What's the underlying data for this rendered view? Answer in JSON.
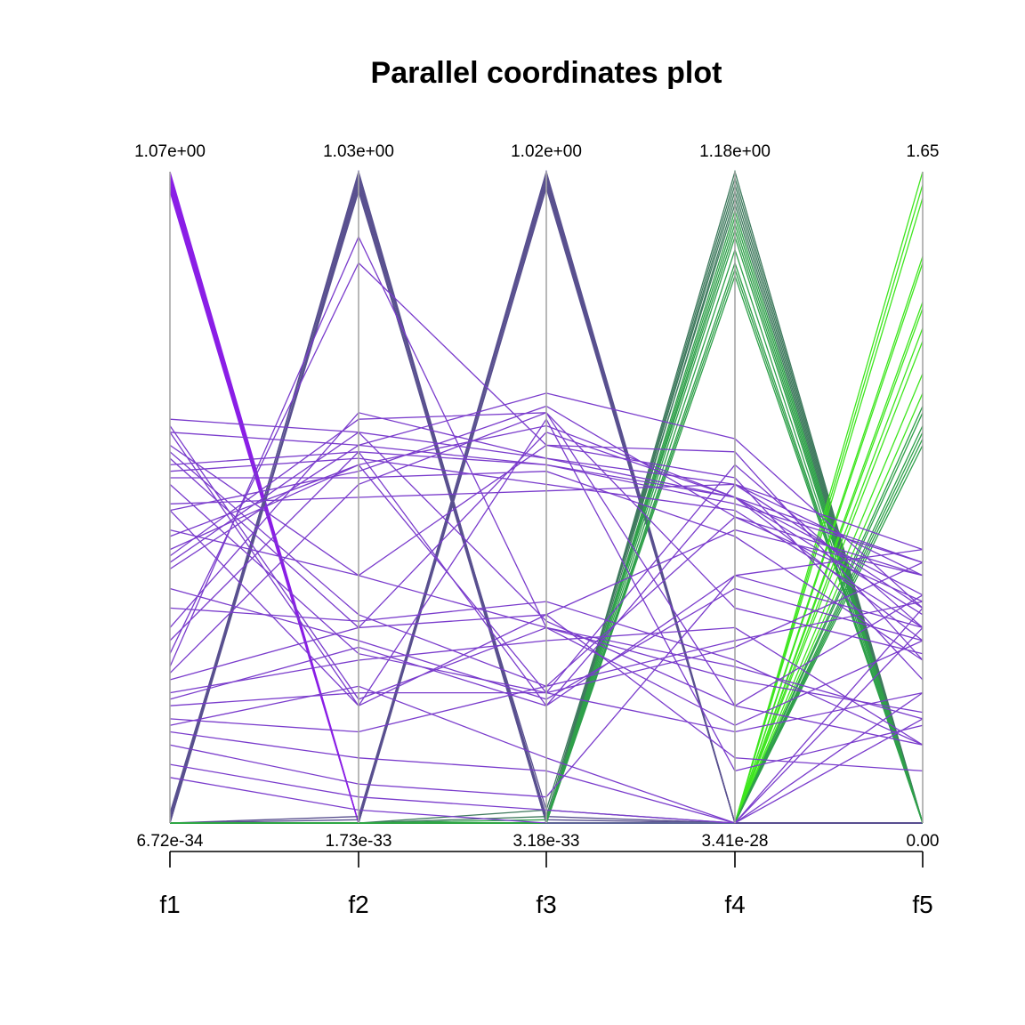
{
  "chart_data": {
    "type": "parallel-coordinates",
    "title": "Parallel coordinates plot",
    "axes": [
      {
        "name": "f1",
        "max_label": "1.07e+00",
        "min_label": "6.72e-34"
      },
      {
        "name": "f2",
        "max_label": "1.03e+00",
        "min_label": "1.73e-33"
      },
      {
        "name": "f3",
        "max_label": "1.02e+00",
        "min_label": "3.18e-33"
      },
      {
        "name": "f4",
        "max_label": "1.18e+00",
        "min_label": "3.41e-28"
      },
      {
        "name": "f5",
        "max_label": "1.65",
        "min_label": "0.00"
      }
    ],
    "colors": {
      "purple_bright": "#8a1ee6",
      "purple": "#7a3ccc",
      "slate": "#59508f",
      "teal_green": "#3f7a5e",
      "green": "#2fa04a",
      "lime": "#3ee61e",
      "axis": "#a6a6a6"
    },
    "series": [
      {
        "color": "purple_bright",
        "values": [
          1.0,
          0.0,
          0.0,
          0.0,
          0.0
        ]
      },
      {
        "color": "purple_bright",
        "values": [
          0.995,
          0.0,
          0.0,
          0.0,
          0.0
        ]
      },
      {
        "color": "purple_bright",
        "values": [
          0.99,
          0.0,
          0.0,
          0.0,
          0.0
        ]
      },
      {
        "color": "purple_bright",
        "values": [
          0.985,
          0.0,
          0.0,
          0.0,
          0.0
        ]
      },
      {
        "color": "purple_bright",
        "values": [
          0.98,
          0.0,
          0.0,
          0.0,
          0.0
        ]
      },
      {
        "color": "purple_bright",
        "values": [
          0.975,
          0.0,
          0.0,
          0.0,
          0.0
        ]
      },
      {
        "color": "purple_bright",
        "values": [
          0.97,
          0.0,
          0.0,
          0.0,
          0.0
        ]
      },
      {
        "color": "slate",
        "values": [
          0.0,
          1.0,
          0.0,
          0.0,
          0.0
        ]
      },
      {
        "color": "slate",
        "values": [
          0.005,
          0.995,
          0.005,
          0.0,
          0.0
        ]
      },
      {
        "color": "slate",
        "values": [
          0.01,
          0.99,
          0.0,
          0.0,
          0.0
        ]
      },
      {
        "color": "slate",
        "values": [
          0.0,
          0.985,
          0.01,
          0.0,
          0.0
        ]
      },
      {
        "color": "slate",
        "values": [
          0.003,
          0.98,
          0.0,
          0.0,
          0.0
        ]
      },
      {
        "color": "slate",
        "values": [
          0.0,
          0.975,
          0.0,
          0.0,
          0.0
        ]
      },
      {
        "color": "slate",
        "values": [
          0.015,
          0.97,
          0.02,
          0.0,
          0.0
        ]
      },
      {
        "color": "slate",
        "values": [
          0.0,
          0.0,
          1.0,
          0.0,
          0.0
        ]
      },
      {
        "color": "slate",
        "values": [
          0.0,
          0.005,
          0.995,
          0.0,
          0.0
        ]
      },
      {
        "color": "slate",
        "values": [
          0.0,
          0.0,
          0.99,
          0.0,
          0.0
        ]
      },
      {
        "color": "slate",
        "values": [
          0.0,
          0.01,
          0.985,
          0.0,
          0.0
        ]
      },
      {
        "color": "slate",
        "values": [
          0.0,
          0.0,
          0.98,
          0.0,
          0.0
        ]
      },
      {
        "color": "slate",
        "values": [
          0.0,
          0.0,
          0.975,
          0.0,
          0.0
        ]
      },
      {
        "color": "teal_green",
        "values": [
          0.0,
          0.0,
          0.0,
          1.0,
          0.0
        ]
      },
      {
        "color": "teal_green",
        "values": [
          0.0,
          0.0,
          0.0,
          0.99,
          0.0
        ]
      },
      {
        "color": "teal_green",
        "values": [
          0.0,
          0.0,
          0.0,
          0.98,
          0.0
        ]
      },
      {
        "color": "teal_green",
        "values": [
          0.0,
          0.0,
          0.01,
          0.97,
          0.0
        ]
      },
      {
        "color": "teal_green",
        "values": [
          0.0,
          0.0,
          0.0,
          0.96,
          0.0
        ]
      },
      {
        "color": "teal_green",
        "values": [
          0.0,
          0.0,
          0.02,
          0.95,
          0.0
        ]
      },
      {
        "color": "green",
        "values": [
          0.0,
          0.0,
          0.0,
          0.94,
          0.0
        ]
      },
      {
        "color": "green",
        "values": [
          0.0,
          0.0,
          0.0,
          0.93,
          0.0
        ]
      },
      {
        "color": "green",
        "values": [
          0.0,
          0.0,
          0.0,
          0.92,
          0.0
        ]
      },
      {
        "color": "green",
        "values": [
          0.0,
          0.0,
          0.005,
          0.91,
          0.0
        ]
      },
      {
        "color": "green",
        "values": [
          0.0,
          0.0,
          0.0,
          0.9,
          0.0
        ]
      },
      {
        "color": "green",
        "values": [
          0.0,
          0.0,
          0.0,
          0.88,
          0.0
        ]
      },
      {
        "color": "green",
        "values": [
          0.0,
          0.0,
          0.0,
          0.86,
          0.0
        ]
      },
      {
        "color": "green",
        "values": [
          0.0,
          0.0,
          0.0,
          0.85,
          0.0
        ]
      },
      {
        "color": "green",
        "values": [
          0.0,
          0.0,
          0.0,
          0.84,
          0.0
        ]
      },
      {
        "color": "lime",
        "values": [
          0.0,
          0.0,
          0.0,
          0.0,
          1.0
        ]
      },
      {
        "color": "lime",
        "values": [
          0.0,
          0.0,
          0.0,
          0.0,
          0.98
        ]
      },
      {
        "color": "lime",
        "values": [
          0.0,
          0.0,
          0.0,
          0.0,
          0.96
        ]
      },
      {
        "color": "lime",
        "values": [
          0.0,
          0.0,
          0.0,
          0.0,
          0.87
        ]
      },
      {
        "color": "lime",
        "values": [
          0.0,
          0.0,
          0.0,
          0.0,
          0.86
        ]
      },
      {
        "color": "lime",
        "values": [
          0.0,
          0.0,
          0.0,
          0.0,
          0.8
        ]
      },
      {
        "color": "lime",
        "values": [
          0.0,
          0.0,
          0.0,
          0.0,
          0.79
        ]
      },
      {
        "color": "lime",
        "values": [
          0.0,
          0.0,
          0.0,
          0.0,
          0.76
        ]
      },
      {
        "color": "lime",
        "values": [
          0.0,
          0.0,
          0.0,
          0.0,
          0.74
        ]
      },
      {
        "color": "lime",
        "values": [
          0.0,
          0.0,
          0.0,
          0.0,
          0.69
        ]
      },
      {
        "color": "lime",
        "values": [
          0.0,
          0.0,
          0.0,
          0.0,
          0.66
        ]
      },
      {
        "color": "green",
        "values": [
          0.0,
          0.0,
          0.0,
          0.0,
          0.64
        ]
      },
      {
        "color": "green",
        "values": [
          0.0,
          0.0,
          0.0,
          0.0,
          0.63
        ]
      },
      {
        "color": "green",
        "values": [
          0.0,
          0.0,
          0.0,
          0.0,
          0.61
        ]
      },
      {
        "color": "green",
        "values": [
          0.0,
          0.0,
          0.0,
          0.0,
          0.6
        ]
      },
      {
        "color": "green",
        "values": [
          0.0,
          0.0,
          0.0,
          0.0,
          0.59
        ]
      },
      {
        "color": "green",
        "values": [
          0.0,
          0.0,
          0.0,
          0.0,
          0.58
        ]
      },
      {
        "color": "purple",
        "values": [
          0.62,
          0.6,
          0.56,
          0.52,
          0.38
        ]
      },
      {
        "color": "purple",
        "values": [
          0.6,
          0.58,
          0.55,
          0.49,
          0.4
        ]
      },
      {
        "color": "purple",
        "values": [
          0.55,
          0.57,
          0.55,
          0.5,
          0.35
        ]
      },
      {
        "color": "purple",
        "values": [
          0.54,
          0.56,
          0.52,
          0.48,
          0.3
        ]
      },
      {
        "color": "purple",
        "values": [
          0.53,
          0.53,
          0.54,
          0.44,
          0.25
        ]
      },
      {
        "color": "purple",
        "values": [
          0.49,
          0.5,
          0.51,
          0.52,
          0.42
        ]
      },
      {
        "color": "purple",
        "values": [
          0.48,
          0.54,
          0.64,
          0.47,
          0.34
        ]
      },
      {
        "color": "purple",
        "values": [
          0.44,
          0.55,
          0.61,
          0.5,
          0.32
        ]
      },
      {
        "color": "purple",
        "values": [
          0.41,
          0.62,
          0.63,
          0.33,
          0.26
        ]
      },
      {
        "color": "purple",
        "values": [
          0.4,
          0.6,
          0.31,
          0.18,
          0.12
        ]
      },
      {
        "color": "purple",
        "values": [
          0.58,
          0.38,
          0.58,
          0.57,
          0.25
        ]
      },
      {
        "color": "purple",
        "values": [
          0.57,
          0.32,
          0.21,
          0.28,
          0.34
        ]
      },
      {
        "color": "purple",
        "values": [
          0.56,
          0.3,
          0.32,
          0.45,
          0.38
        ]
      },
      {
        "color": "purple",
        "values": [
          0.52,
          0.26,
          0.2,
          0.55,
          0.3
        ]
      },
      {
        "color": "purple",
        "values": [
          0.61,
          0.19,
          0.3,
          0.15,
          0.28
        ]
      },
      {
        "color": "purple",
        "values": [
          0.6,
          0.18,
          0.62,
          0.08,
          0.15
        ]
      },
      {
        "color": "purple",
        "values": [
          0.3,
          0.63,
          0.56,
          0.5,
          0.28
        ]
      },
      {
        "color": "purple",
        "values": [
          0.28,
          0.57,
          0.18,
          0.38,
          0.42
        ]
      },
      {
        "color": "purple",
        "values": [
          0.26,
          0.86,
          0.58,
          0.53,
          0.22
        ]
      },
      {
        "color": "purple",
        "values": [
          0.24,
          0.9,
          0.3,
          0.24,
          0.16
        ]
      },
      {
        "color": "purple",
        "values": [
          0.23,
          0.52,
          0.63,
          0.18,
          0.35
        ]
      },
      {
        "color": "purple",
        "values": [
          0.22,
          0.3,
          0.6,
          0.5,
          0.4
        ]
      },
      {
        "color": "purple",
        "values": [
          0.2,
          0.25,
          0.28,
          0.3,
          0.12
        ]
      },
      {
        "color": "purple",
        "values": [
          0.19,
          0.27,
          0.18,
          0.52,
          0.33
        ]
      },
      {
        "color": "purple",
        "values": [
          0.18,
          0.2,
          0.2,
          0.14,
          0.2
        ]
      },
      {
        "color": "purple",
        "values": [
          0.16,
          0.14,
          0.21,
          0.47,
          0.38
        ]
      },
      {
        "color": "purple",
        "values": [
          0.15,
          0.21,
          0.1,
          0.0,
          0.33
        ]
      },
      {
        "color": "purple",
        "values": [
          0.14,
          0.1,
          0.08,
          0.0,
          0.3
        ]
      },
      {
        "color": "purple",
        "values": [
          0.12,
          0.06,
          0.04,
          0.38,
          0.3
        ]
      },
      {
        "color": "purple",
        "values": [
          0.09,
          0.04,
          0.02,
          0.0,
          0.2
        ]
      },
      {
        "color": "purple",
        "values": [
          0.07,
          0.02,
          0.0,
          0.0,
          0.16
        ]
      },
      {
        "color": "purple",
        "values": [
          0.33,
          0.31,
          0.34,
          0.25,
          0.12
        ]
      },
      {
        "color": "purple",
        "values": [
          0.36,
          0.28,
          0.19,
          0.36,
          0.28
        ]
      },
      {
        "color": "purple",
        "values": [
          0.48,
          0.18,
          0.32,
          0.1,
          0.08
        ]
      },
      {
        "color": "purple",
        "values": [
          0.45,
          0.38,
          0.3,
          0.22,
          0.17
        ]
      },
      {
        "color": "purple",
        "values": [
          0.39,
          0.58,
          0.66,
          0.59,
          0.33
        ]
      },
      {
        "color": "purple",
        "values": [
          0.42,
          0.55,
          0.2,
          0.27,
          0.4
        ]
      }
    ]
  }
}
